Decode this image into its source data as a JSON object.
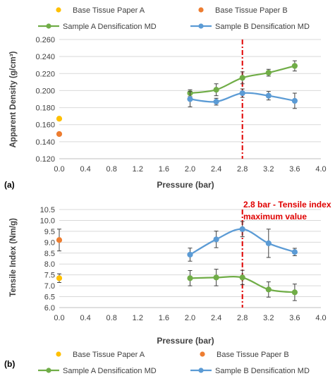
{
  "colors": {
    "base_a": "#FFC000",
    "base_b": "#ED7D31",
    "sample_a": "#70AD47",
    "sample_b": "#5B9BD5",
    "marker_line": "#E00000",
    "grid": "#D9D9D9",
    "error_bar": "#404040"
  },
  "chart_data": [
    {
      "type": "line",
      "panel_label": "(a)",
      "xlabel": "Pressure (bar)",
      "ylabel": "Apparent Density (g/cm³)",
      "xlim": [
        0.0,
        4.0
      ],
      "ylim": [
        0.12,
        0.26
      ],
      "xticks": [
        "0.0",
        "0.4",
        "0.8",
        "1.2",
        "1.6",
        "2.0",
        "2.4",
        "2.8",
        "3.2",
        "3.6",
        "4.0"
      ],
      "yticks": [
        "0.120",
        "0.140",
        "0.160",
        "0.180",
        "0.200",
        "0.220",
        "0.240",
        "0.260"
      ],
      "grid": "horizontal",
      "legend_position": "top",
      "vertical_marker_x": 2.8,
      "series": [
        {
          "name": "Base Tissue Paper A",
          "color_key": "base_a",
          "style": "point",
          "x": [
            0.0
          ],
          "y": [
            0.167
          ],
          "err": [
            0.002
          ]
        },
        {
          "name": "Base Tissue Paper B",
          "color_key": "base_b",
          "style": "point",
          "x": [
            0.0
          ],
          "y": [
            0.149
          ],
          "err": [
            0.002
          ]
        },
        {
          "name": "Sample A Densification MD",
          "color_key": "sample_a",
          "style": "line",
          "x": [
            2.0,
            2.4,
            2.8,
            3.2,
            3.6
          ],
          "y": [
            0.197,
            0.201,
            0.215,
            0.221,
            0.229
          ],
          "err": [
            0.004,
            0.007,
            0.007,
            0.004,
            0.006
          ]
        },
        {
          "name": "Sample B Densification MD",
          "color_key": "sample_b",
          "style": "line",
          "x": [
            2.0,
            2.4,
            2.8,
            3.2,
            3.6
          ],
          "y": [
            0.19,
            0.187,
            0.197,
            0.194,
            0.188
          ],
          "err": [
            0.009,
            0.004,
            0.005,
            0.005,
            0.009
          ]
        }
      ]
    },
    {
      "type": "line",
      "panel_label": "(b)",
      "xlabel": "Pressure (bar)",
      "ylabel": "Tensile Index (Nm/g)",
      "xlim": [
        0.0,
        4.0
      ],
      "ylim": [
        6.0,
        10.5
      ],
      "xticks": [
        "0.0",
        "0.4",
        "0.8",
        "1.2",
        "1.6",
        "2.0",
        "2.4",
        "2.8",
        "3.2",
        "3.6",
        "4.0"
      ],
      "yticks": [
        "6.0",
        "6.5",
        "7.0",
        "7.5",
        "8.0",
        "8.5",
        "9.0",
        "9.5",
        "10.0",
        "10.5"
      ],
      "grid": "horizontal",
      "legend_position": "bottom",
      "vertical_marker_x": 2.8,
      "annotation": "2.8 bar - Tensile index maximum value",
      "annotation_lines": [
        "2.8 bar - Tensile index",
        "maximum value"
      ],
      "series": [
        {
          "name": "Base Tissue Paper A",
          "color_key": "base_a",
          "style": "point",
          "x": [
            0.0
          ],
          "y": [
            7.35
          ],
          "err": [
            0.2
          ]
        },
        {
          "name": "Base Tissue Paper B",
          "color_key": "base_b",
          "style": "point",
          "x": [
            0.0
          ],
          "y": [
            9.1
          ],
          "err": [
            0.5
          ]
        },
        {
          "name": "Sample A Densification MD",
          "color_key": "sample_a",
          "style": "line",
          "x": [
            2.0,
            2.4,
            2.8,
            3.2,
            3.6
          ],
          "y": [
            7.35,
            7.38,
            7.38,
            6.83,
            6.7
          ],
          "err": [
            0.35,
            0.38,
            0.33,
            0.35,
            0.38
          ]
        },
        {
          "name": "Sample B Densification MD",
          "color_key": "sample_b",
          "style": "line",
          "x": [
            2.0,
            2.4,
            2.8,
            3.2,
            3.6
          ],
          "y": [
            8.43,
            9.13,
            9.6,
            8.95,
            8.55
          ],
          "err": [
            0.3,
            0.38,
            0.35,
            0.65,
            0.17
          ]
        }
      ]
    }
  ]
}
